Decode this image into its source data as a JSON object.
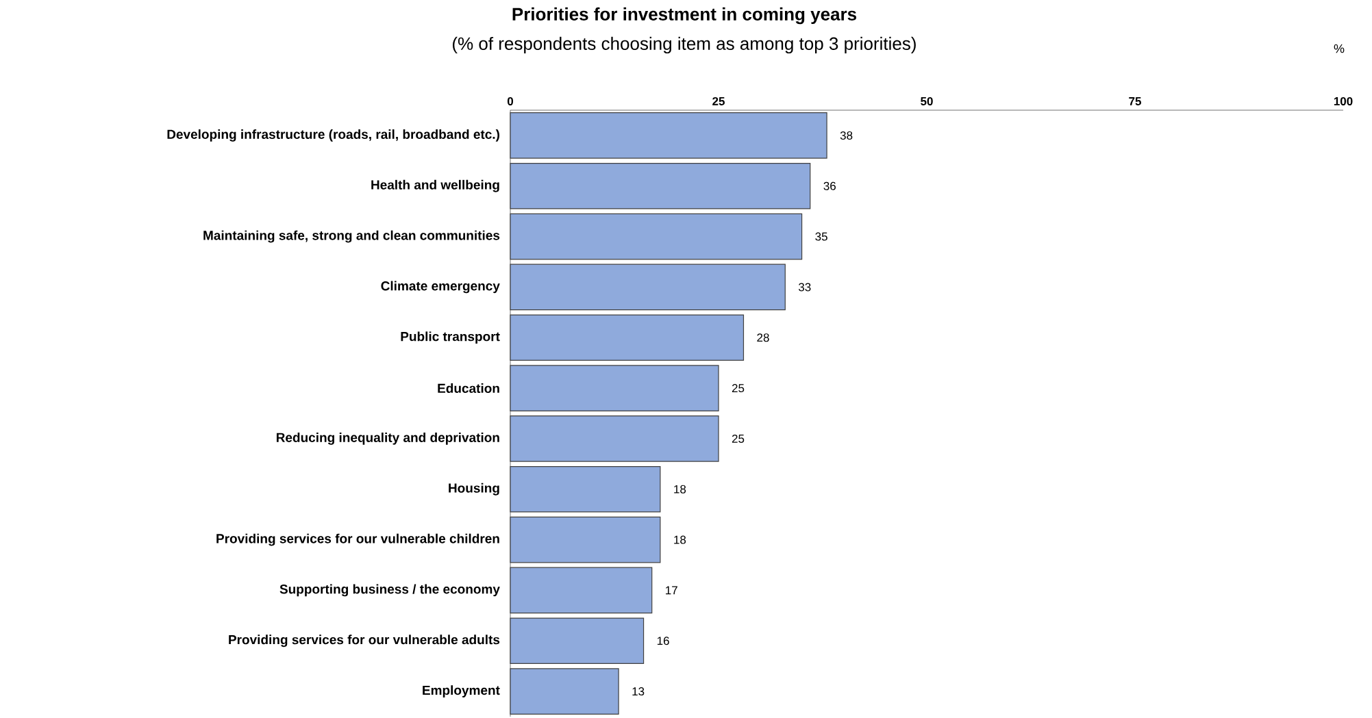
{
  "chart_data": {
    "type": "bar",
    "orientation": "horizontal",
    "title": "Priorities for investment in coming years",
    "subtitle": "(% of respondents choosing item as among top 3 priorities)",
    "xlabel": "%",
    "categories": [
      "Developing infrastructure (roads, rail, broadband etc.)",
      "Health and wellbeing",
      "Maintaining safe, strong and clean communities",
      "Climate emergency",
      "Public transport",
      "Education",
      "Reducing inequality and deprivation",
      "Housing",
      "Providing services for our vulnerable children",
      "Supporting business / the economy",
      "Providing services for our vulnerable adults",
      "Employment"
    ],
    "values": [
      38,
      36,
      35,
      33,
      28,
      25,
      25,
      18,
      18,
      17,
      16,
      13
    ],
    "color": "#8faadc",
    "xlim": [
      0,
      100
    ],
    "xticks": [
      0,
      25,
      50,
      75,
      100
    ],
    "data_labels": true,
    "grid": false
  }
}
